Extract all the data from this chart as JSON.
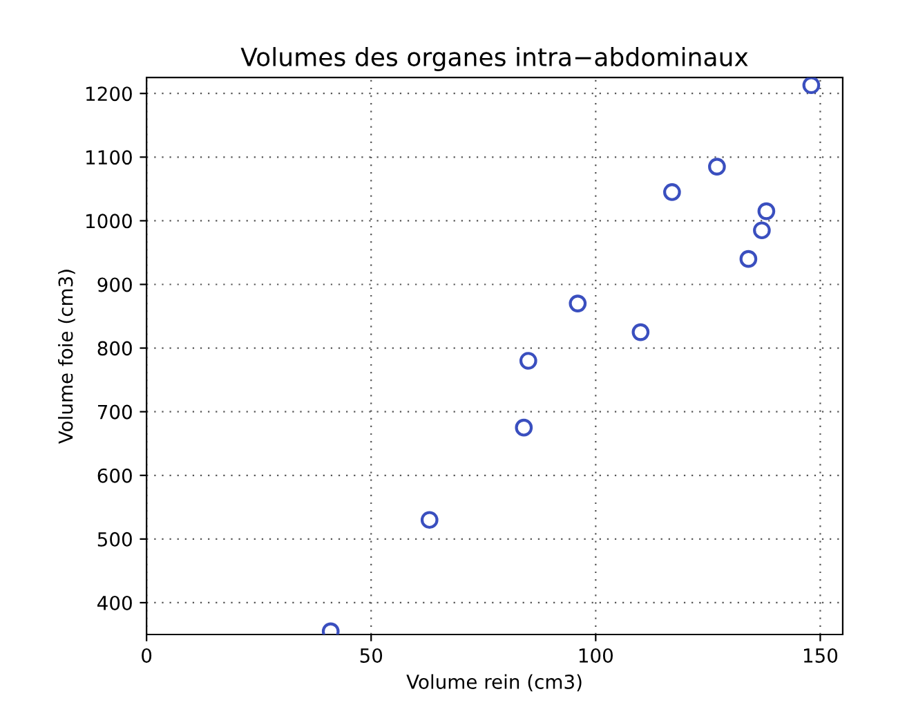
{
  "chart_data": {
    "type": "scatter",
    "title": "Volumes des organes intra−abdominaux",
    "xlabel": "Volume rein (cm3)",
    "ylabel": "Volume foie (cm3)",
    "x": [
      41,
      63,
      84,
      85,
      96,
      110,
      117,
      127,
      134,
      137,
      138,
      148
    ],
    "series": [
      {
        "color": "#3a4fbf",
        "values": [
          355,
          530,
          675,
          780,
          870,
          825,
          1045,
          1085,
          940,
          985,
          1015,
          1213
        ]
      }
    ],
    "xlim": [
      0,
      155
    ],
    "xticks": [
      0,
      50,
      100,
      150
    ],
    "ylim": [
      350,
      1225
    ],
    "yticks": [
      400,
      500,
      600,
      700,
      800,
      900,
      1000,
      1100,
      1200
    ],
    "grid": true,
    "marker": "circle",
    "legend": false
  }
}
